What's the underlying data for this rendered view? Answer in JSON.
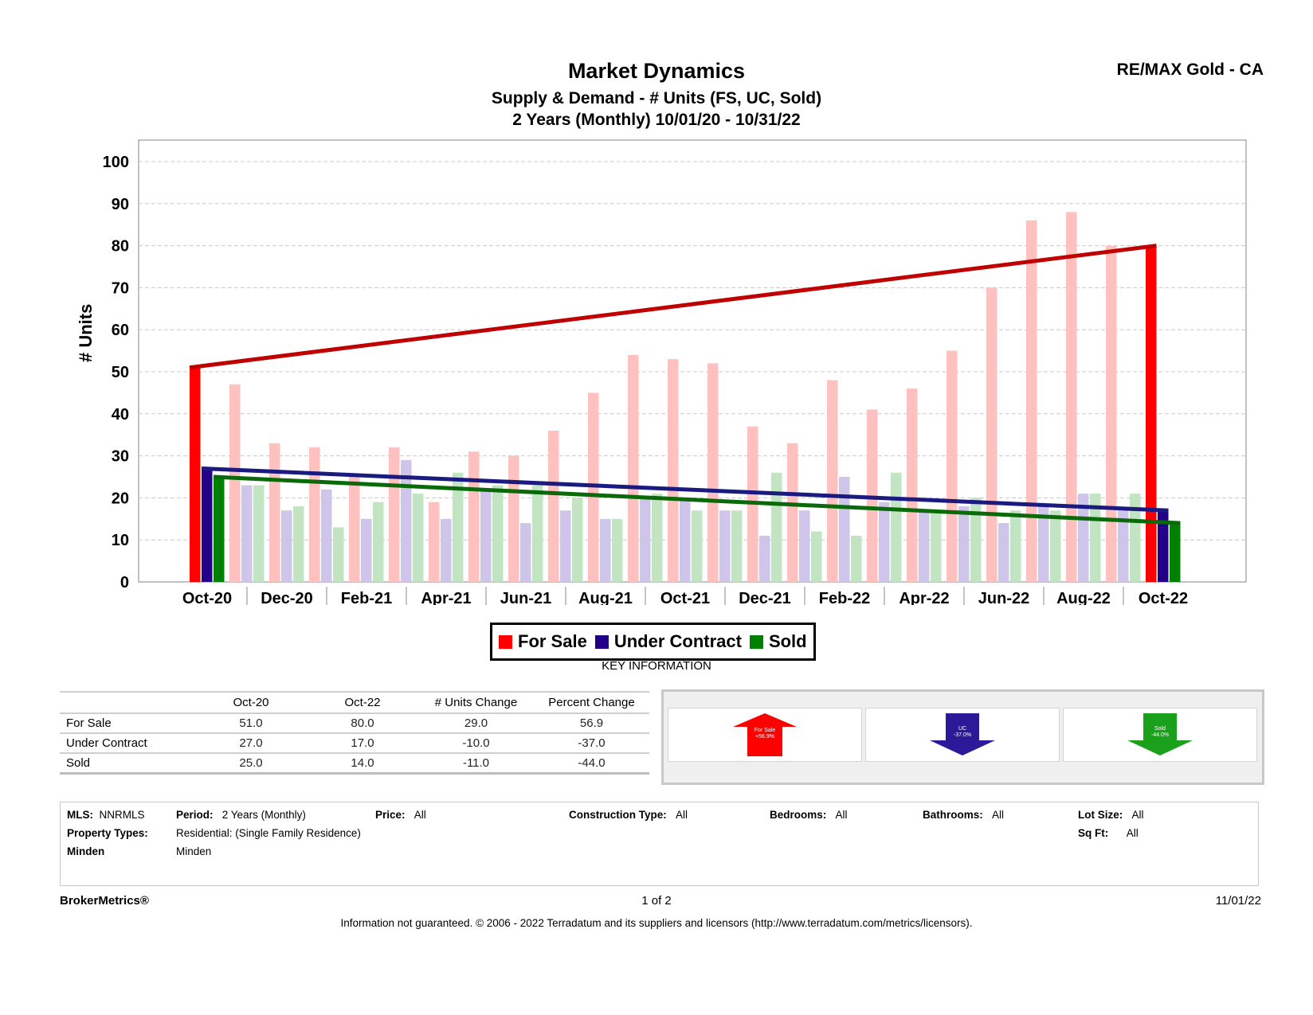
{
  "header": {
    "title": "Market Dynamics",
    "subtitle1": "Supply & Demand - # Units (FS, UC, Sold)",
    "subtitle2": "2 Years (Monthly) 10/01/20 - 10/31/22",
    "brand": "RE/MAX Gold - CA"
  },
  "chart_data": {
    "type": "bar",
    "ylabel": "# Units",
    "ylim": [
      0,
      100
    ],
    "yticks": [
      "0",
      "10",
      "20",
      "30",
      "40",
      "50",
      "60",
      "70",
      "80",
      "90",
      "100"
    ],
    "grid": true,
    "legend_position": "bottom",
    "months": [
      "Oct-20",
      "Nov-20",
      "Dec-20",
      "Jan-21",
      "Feb-21",
      "Mar-21",
      "Apr-21",
      "May-21",
      "Jun-21",
      "Jul-21",
      "Aug-21",
      "Sep-21",
      "Oct-21",
      "Nov-21",
      "Dec-21",
      "Jan-22",
      "Feb-22",
      "Mar-22",
      "Apr-22",
      "May-22",
      "Jun-22",
      "Jul-22",
      "Aug-22",
      "Sep-22",
      "Oct-22"
    ],
    "xtick_labels": [
      "Oct-20",
      "Dec-20",
      "Feb-21",
      "Apr-21",
      "Jun-21",
      "Aug-21",
      "Oct-21",
      "Dec-21",
      "Feb-22",
      "Apr-22",
      "Jun-22",
      "Aug-22",
      "Oct-22"
    ],
    "series": [
      {
        "name": "For Sale",
        "color": "#ff0000",
        "faded_color": "#ffc0c0",
        "trend_color": "#c00000",
        "values": [
          51,
          47,
          33,
          32,
          25,
          32,
          19,
          31,
          30,
          36,
          45,
          54,
          53,
          52,
          37,
          33,
          48,
          41,
          46,
          55,
          70,
          86,
          88,
          80,
          80
        ]
      },
      {
        "name": "Under Contract",
        "color": "#220088",
        "faded_color": "#cfc4ea",
        "trend_color": "#1a1a80",
        "values": [
          27,
          23,
          17,
          22,
          15,
          29,
          15,
          22,
          14,
          17,
          15,
          20,
          20,
          17,
          11,
          17,
          25,
          19,
          17,
          18,
          14,
          18,
          21,
          17,
          17
        ]
      },
      {
        "name": "Sold",
        "color": "#008000",
        "faded_color": "#c2e4c2",
        "trend_color": "#0a6a0a",
        "values": [
          25,
          23,
          18,
          13,
          19,
          21,
          26,
          23,
          23,
          20,
          15,
          21,
          17,
          17,
          26,
          12,
          11,
          26,
          17,
          20,
          17,
          17,
          21,
          21,
          14
        ]
      }
    ]
  },
  "legend": {
    "items": [
      {
        "label": "For Sale",
        "color": "#ff0000"
      },
      {
        "label": "Under Contract",
        "color": "#220088"
      },
      {
        "label": "Sold",
        "color": "#008000"
      }
    ],
    "key_information": "KEY INFORMATION"
  },
  "table": {
    "headers": [
      "",
      "Oct-20",
      "Oct-22",
      "# Units Change",
      "Percent Change"
    ],
    "rows": [
      [
        "For Sale",
        "51.0",
        "80.0",
        "29.0",
        "56.9"
      ],
      [
        "Under Contract",
        "27.0",
        "17.0",
        "-10.0",
        "-37.0"
      ],
      [
        "Sold",
        "25.0",
        "14.0",
        "-11.0",
        "-44.0"
      ]
    ]
  },
  "arrows": [
    {
      "line1": "For Sale",
      "line2": "+56.9%",
      "direction": "up",
      "color": "#ff0000"
    },
    {
      "line1": "UC",
      "line2": "-37.0%",
      "direction": "down",
      "color": "#2a1a9a"
    },
    {
      "line1": "Sold",
      "line2": "-44.0%",
      "direction": "down",
      "color": "#1aa01a"
    }
  ],
  "criteria": {
    "mls_label": "MLS:",
    "mls_value": "NNRMLS",
    "period_label": "Period:",
    "period_value": "2 Years (Monthly)",
    "price_label": "Price:",
    "price_value": "All",
    "construction_label": "Construction Type:",
    "construction_value": "All",
    "bedrooms_label": "Bedrooms:",
    "bedrooms_value": "All",
    "bathrooms_label": "Bathrooms:",
    "bathrooms_value": "All",
    "lotsize_label": "Lot Size:",
    "lotsize_value": "All",
    "property_types_label": "Property Types:",
    "property_types_value": "Residential: (Single Family Residence)",
    "sqft_label": "Sq Ft:",
    "sqft_value": "All",
    "area_label": "Minden",
    "area_value": "Minden"
  },
  "footer": {
    "brand": "BrokerMetrics®",
    "page": "1 of 2",
    "date": "11/01/22",
    "disclaimer": "Information not guaranteed.  © 2006 - 2022 Terradatum and its suppliers and licensors (http://www.terradatum.com/metrics/licensors)."
  }
}
